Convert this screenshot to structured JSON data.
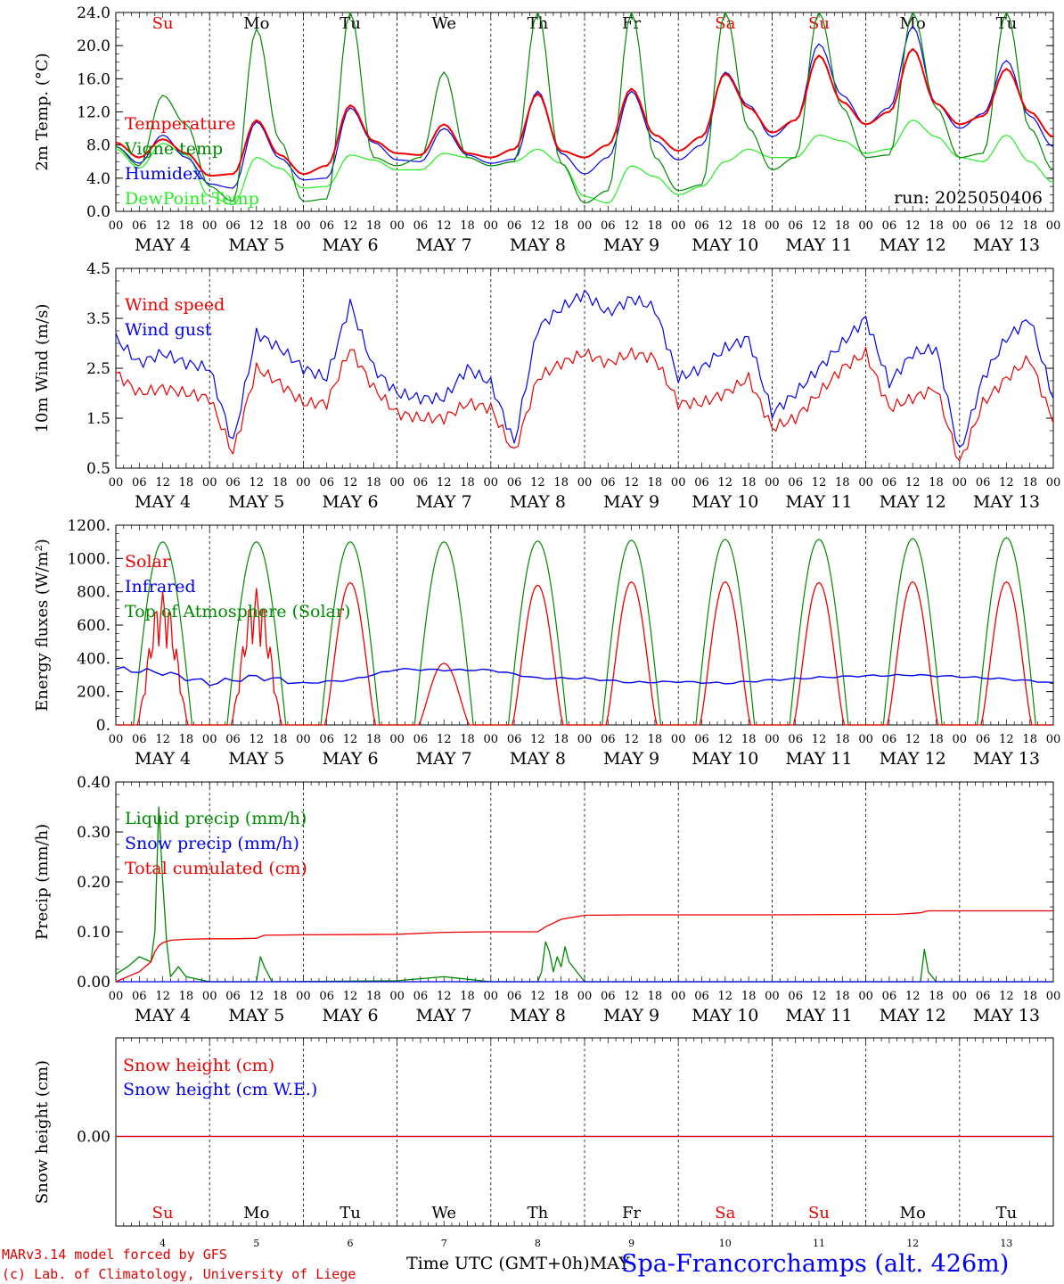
{
  "colors": {
    "red": "#ee0000",
    "green": "#008800",
    "blue": "#0000ee",
    "lightgreen": "#22ee22",
    "black": "#000000"
  },
  "day_labels": [
    "Su",
    "Mo",
    "Tu",
    "We",
    "Th",
    "Fr",
    "Sa",
    "Su",
    "Mo",
    "Tu"
  ],
  "day_label_colors": [
    "red",
    "black",
    "black",
    "black",
    "black",
    "black",
    "red",
    "red",
    "black",
    "black"
  ],
  "date_labels": [
    "MAY  4",
    "MAY  5",
    "MAY  6",
    "MAY  7",
    "MAY  8",
    "MAY  9",
    "MAY 10",
    "MAY 11",
    "MAY 12",
    "MAY 13"
  ],
  "hour_ticks": [
    "00",
    "06",
    "12",
    "18"
  ],
  "bottom_day_numbers": [
    "4",
    "5",
    "6",
    "7",
    "8",
    "9",
    "10",
    "11",
    "12",
    "13"
  ],
  "footer": {
    "model": "MARv3.14 model forced by GFS",
    "copyright": "(c) Lab. of Climatology, University of Liege",
    "xaxis": "Time UTC (GMT+0h)",
    "month": "MAY",
    "station": "Spa-Francorchamps (alt. 426m)"
  },
  "chart_data": [
    {
      "type": "line",
      "ylabel": "2m Temp. (°C)",
      "ylim": [
        0,
        24
      ],
      "yticks": [
        "0.0",
        "4.0",
        "8.0",
        "12.0",
        "16.0",
        "20.0",
        "24.0"
      ],
      "annotation": "run: 2025050406",
      "x_unit": "hours since MAY 4 00 UTC",
      "x": [
        0,
        6,
        12,
        18,
        24,
        30,
        36,
        42,
        48,
        54,
        60,
        66,
        72,
        78,
        84,
        90,
        96,
        102,
        108,
        114,
        120,
        126,
        132,
        138,
        144,
        150,
        156,
        162,
        168,
        174,
        180,
        186,
        192,
        198,
        204,
        210,
        216,
        222,
        228,
        234,
        240
      ],
      "series": [
        {
          "name": "Temperature",
          "color": "red",
          "values": [
            8.3,
            6.5,
            8.7,
            7.0,
            4.3,
            4.5,
            11.0,
            6.8,
            4.5,
            5.5,
            12.8,
            8.5,
            7.0,
            6.8,
            10.5,
            7.0,
            6.5,
            7.5,
            14.2,
            7.3,
            6.5,
            8.0,
            14.8,
            9.2,
            7.3,
            9.0,
            16.6,
            12.5,
            9.5,
            11.0,
            18.8,
            13.2,
            10.5,
            12.0,
            19.6,
            13.0,
            10.5,
            11.5,
            17.2,
            12.0,
            9.0
          ]
        },
        {
          "name": "Vigne temp",
          "color": "green",
          "values": [
            7.8,
            5.5,
            14.0,
            10.5,
            3.0,
            1.2,
            22.0,
            8.5,
            1.2,
            1.5,
            24.0,
            6.5,
            5.5,
            6.5,
            16.8,
            6.5,
            5.5,
            6.0,
            24.0,
            5.8,
            1.0,
            2.5,
            24.0,
            6.5,
            2.5,
            3.2,
            24.0,
            10.0,
            5.0,
            6.5,
            24.0,
            12.5,
            6.5,
            6.8,
            24.0,
            12.5,
            6.5,
            7.0,
            24.0,
            10.0,
            5.0
          ]
        },
        {
          "name": "Humidex",
          "color": "blue",
          "values": [
            7.8,
            5.8,
            9.2,
            6.5,
            3.3,
            2.8,
            10.8,
            6.4,
            3.8,
            4.0,
            12.5,
            8.3,
            6.2,
            6.0,
            10.0,
            6.8,
            5.8,
            6.3,
            14.5,
            7.0,
            4.5,
            6.5,
            14.5,
            8.5,
            6.2,
            8.0,
            16.8,
            12.8,
            9.0,
            11.0,
            20.2,
            14.0,
            10.5,
            12.5,
            22.3,
            13.0,
            10.0,
            11.8,
            18.2,
            11.5,
            7.8
          ]
        },
        {
          "name": "DewPoint Temp",
          "color": "lightgreen",
          "values": [
            7.5,
            5.2,
            8.2,
            6.8,
            1.8,
            0.8,
            6.5,
            5.2,
            2.8,
            3.0,
            6.8,
            6.2,
            5.0,
            5.0,
            7.0,
            6.5,
            5.5,
            6.0,
            7.5,
            5.8,
            1.8,
            1.0,
            5.5,
            4.2,
            2.0,
            3.0,
            6.0,
            7.5,
            6.5,
            6.5,
            9.2,
            8.5,
            7.0,
            7.5,
            11.0,
            9.0,
            6.5,
            6.0,
            9.2,
            6.0,
            3.5
          ]
        }
      ]
    },
    {
      "type": "line",
      "ylabel": "10m Wind (m/s)",
      "ylim": [
        0.5,
        4.5
      ],
      "yticks": [
        "0.5",
        "1.5",
        "2.5",
        "3.5",
        "4.5"
      ],
      "x_unit": "hours since MAY 4 00 UTC",
      "x": [
        0,
        6,
        12,
        18,
        24,
        30,
        36,
        42,
        48,
        54,
        60,
        66,
        72,
        78,
        84,
        90,
        96,
        102,
        108,
        114,
        120,
        126,
        132,
        138,
        144,
        150,
        156,
        162,
        168,
        174,
        180,
        186,
        192,
        198,
        204,
        210,
        216,
        222,
        228,
        234,
        240
      ],
      "series": [
        {
          "name": "Wind speed",
          "color": "red",
          "values": [
            2.4,
            2.0,
            2.1,
            2.0,
            1.9,
            0.8,
            2.5,
            2.2,
            1.8,
            1.8,
            2.9,
            2.1,
            1.6,
            1.5,
            1.5,
            1.8,
            1.7,
            0.8,
            2.3,
            2.6,
            2.8,
            2.6,
            2.8,
            2.7,
            1.8,
            1.8,
            2.0,
            2.3,
            1.3,
            1.5,
            2.0,
            2.5,
            2.8,
            1.7,
            1.9,
            2.1,
            0.6,
            1.8,
            2.3,
            2.7,
            1.4
          ]
        },
        {
          "name": "Wind gust",
          "color": "blue",
          "values": [
            3.1,
            2.6,
            2.8,
            2.6,
            2.5,
            1.0,
            3.2,
            2.9,
            2.5,
            2.3,
            3.8,
            2.5,
            2.0,
            1.9,
            1.9,
            2.5,
            2.2,
            1.0,
            3.3,
            3.7,
            4.0,
            3.6,
            3.9,
            3.7,
            2.3,
            2.5,
            2.9,
            3.1,
            1.6,
            2.0,
            2.5,
            3.0,
            3.5,
            2.2,
            2.8,
            2.9,
            0.8,
            2.3,
            3.1,
            3.5,
            1.9
          ]
        }
      ]
    },
    {
      "type": "line",
      "ylabel": "Energy fluxes (W/m²)",
      "ylim": [
        0,
        1200
      ],
      "yticks": [
        "0.",
        "200.",
        "400.",
        "600.",
        "800.",
        "1000.",
        "1200."
      ],
      "x_unit": "hours since MAY 4 00 UTC",
      "solar_peaks": [
        800,
        820,
        855,
        370,
        840,
        860,
        860,
        855,
        860,
        860
      ],
      "toa_peaks": [
        1100,
        1100,
        1100,
        1100,
        1105,
        1110,
        1115,
        1115,
        1120,
        1125
      ],
      "series": [
        {
          "name": "Solar",
          "color": "red"
        },
        {
          "name": "Infrared",
          "color": "blue",
          "x": [
            0,
            12,
            24,
            36,
            48,
            60,
            72,
            84,
            96,
            108,
            120,
            132,
            144,
            156,
            168,
            180,
            192,
            204,
            216,
            228,
            240
          ],
          "values": [
            335,
            315,
            250,
            290,
            250,
            270,
            335,
            330,
            330,
            280,
            280,
            255,
            260,
            250,
            270,
            285,
            295,
            300,
            290,
            275,
            255
          ]
        },
        {
          "name": "Top of Atmosphere (Solar)",
          "color": "green"
        }
      ]
    },
    {
      "type": "line",
      "ylabel": "Precip (mm/h)",
      "ylim": [
        0,
        0.4
      ],
      "yticks": [
        "0.00",
        "0.10",
        "0.20",
        "0.30",
        "0.40"
      ],
      "x_unit": "hours since MAY 4 00 UTC",
      "series": [
        {
          "name": "Liquid precip (mm/h)",
          "color": "green",
          "x": [
            0,
            3,
            6,
            9,
            10,
            11,
            12,
            13,
            14,
            15,
            16,
            18,
            24,
            36,
            37,
            38,
            40,
            72,
            84,
            96,
            108,
            109,
            110,
            111,
            112,
            113,
            114,
            115,
            116,
            120,
            200,
            206,
            207,
            208,
            210,
            240
          ],
          "values": [
            0.015,
            0.03,
            0.05,
            0.04,
            0.1,
            0.35,
            0.2,
            0.08,
            0.01,
            0.02,
            0.03,
            0.01,
            0.0,
            0.0,
            0.05,
            0.03,
            0.0,
            0.002,
            0.01,
            0.0,
            0.0,
            0.02,
            0.08,
            0.06,
            0.02,
            0.05,
            0.03,
            0.07,
            0.04,
            0.0,
            0.0,
            0.0,
            0.065,
            0.02,
            0.0,
            0.0
          ]
        },
        {
          "name": "Snow precip (mm/h)",
          "color": "blue",
          "x": [
            0,
            240
          ],
          "values": [
            0,
            0
          ]
        },
        {
          "name": "Total cumulated (cm)",
          "color": "red",
          "x": [
            0,
            6,
            9,
            10,
            11,
            12,
            14,
            18,
            24,
            30,
            36,
            38,
            48,
            72,
            84,
            96,
            108,
            110,
            114,
            120,
            132,
            168,
            200,
            206,
            208,
            240
          ],
          "values": [
            0.0,
            0.02,
            0.04,
            0.06,
            0.072,
            0.078,
            0.083,
            0.085,
            0.086,
            0.086,
            0.087,
            0.093,
            0.094,
            0.095,
            0.099,
            0.1,
            0.1,
            0.11,
            0.125,
            0.133,
            0.134,
            0.134,
            0.135,
            0.138,
            0.142,
            0.142
          ]
        }
      ]
    },
    {
      "type": "line",
      "ylabel": "Snow height (cm)",
      "yticks": [
        "0.00"
      ],
      "x_unit": "hours since MAY 4 00 UTC",
      "series": [
        {
          "name": "Snow height (cm)",
          "color": "red",
          "x": [
            0,
            240
          ],
          "values": [
            0,
            0
          ]
        },
        {
          "name": "Snow height (cm W.E.)",
          "color": "blue",
          "x": [
            0,
            240
          ],
          "values": [
            0,
            0
          ]
        }
      ]
    }
  ]
}
